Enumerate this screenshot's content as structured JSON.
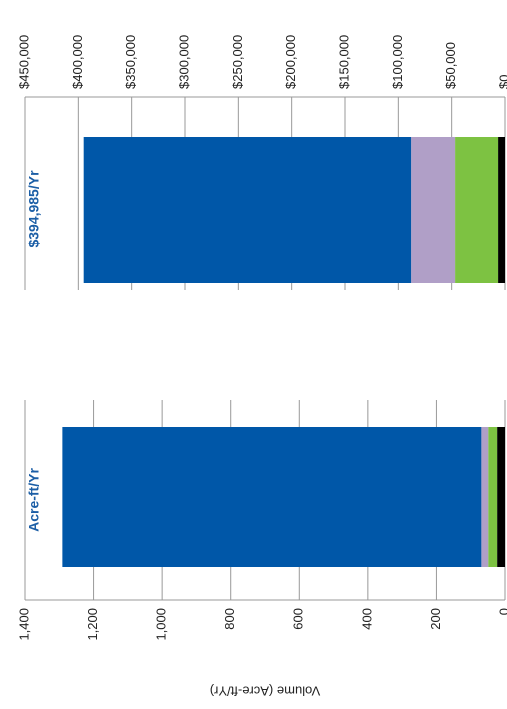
{
  "chart_data": [
    {
      "type": "bar",
      "title": "Acre-ft/Yr",
      "y_label": "Volume (Acre-ft/Yr)",
      "categories": [
        null
      ],
      "ylim": [
        0,
        1400
      ],
      "yticks": [
        0,
        200,
        400,
        600,
        800,
        {
          "value": 1000,
          "label": "1,000"
        },
        {
          "value": 1200,
          "label": "1,200"
        },
        {
          "value": 1400,
          "label": "1,400"
        }
      ],
      "grid": true,
      "stacked": true,
      "series": [
        {
          "color": "#000000",
          "values": [
            23
          ]
        },
        {
          "color": "#7dc242",
          "values": [
            26
          ]
        },
        {
          "color": "#b09fc7",
          "values": [
            20
          ]
        },
        {
          "color": "#0057a8",
          "values": [
            1222
          ]
        }
      ]
    },
    {
      "type": "bar",
      "title": "$394,985/Yr",
      "categories": [
        null
      ],
      "ylim": [
        0,
        450000
      ],
      "yticks": [
        {
          "value": 0,
          "label": "$0"
        },
        {
          "value": 50000,
          "label": "$50,000"
        },
        {
          "value": 100000,
          "label": "$100,000"
        },
        {
          "value": 150000,
          "label": "$150,000"
        },
        {
          "value": 200000,
          "label": "$200,000"
        },
        {
          "value": 250000,
          "label": "$250,000"
        },
        {
          "value": 300000,
          "label": "$300,000"
        },
        {
          "value": 350000,
          "label": "$350,000"
        },
        {
          "value": 400000,
          "label": "$400,000"
        },
        {
          "value": 450000,
          "label": "$450,000"
        }
      ],
      "grid": true,
      "stacked": true,
      "series": [
        {
          "color": "#000000",
          "values": [
            6500
          ]
        },
        {
          "color": "#7dc242",
          "values": [
            40300
          ]
        },
        {
          "color": "#b09fc7",
          "values": [
            41250
          ]
        },
        {
          "color": "#0057a8",
          "values": [
            306935
          ]
        }
      ]
    }
  ]
}
